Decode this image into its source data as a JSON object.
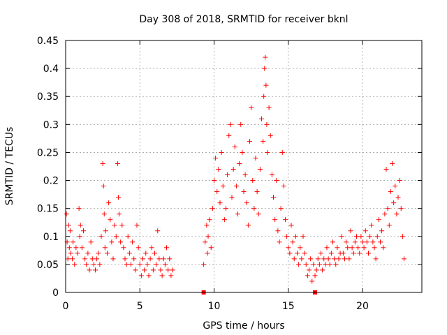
{
  "chart_data": {
    "type": "scatter",
    "title": "Day 308 of 2018, SRMTID for receiver bknl",
    "xlabel": "GPS time / hours",
    "ylabel": "SRMTID / TECUs",
    "xlim": [
      0,
      24
    ],
    "ylim": [
      0,
      0.45
    ],
    "xticks": [
      0,
      5,
      10,
      15,
      20
    ],
    "xtick_labels": [
      "0",
      "5",
      "10",
      "15",
      "20"
    ],
    "yticks": [
      0,
      0.05,
      0.1,
      0.15,
      0.2,
      0.25,
      0.3,
      0.35,
      0.4,
      0.45
    ],
    "ytick_labels": [
      "0",
      "0.05",
      "0.1",
      "0.15",
      "0.2",
      "0.25",
      "0.3",
      "0.35",
      "0.4",
      "0.45"
    ],
    "grid": true,
    "marker": "+",
    "color": "#ff0000",
    "series": [
      {
        "name": "SRMTID",
        "x": [
          0.05,
          0.1,
          0.15,
          0.2,
          0.25,
          0.3,
          0.35,
          0.45,
          0.5,
          0.6,
          0.7,
          0.8,
          0.9,
          0.95,
          1.0,
          1.1,
          1.2,
          1.3,
          1.4,
          1.5,
          1.6,
          1.7,
          1.8,
          1.9,
          2.0,
          2.1,
          2.2,
          2.3,
          2.4,
          2.5,
          2.55,
          2.6,
          2.65,
          2.7,
          2.8,
          2.9,
          3.0,
          3.1,
          3.2,
          3.3,
          3.4,
          3.5,
          3.55,
          3.6,
          3.7,
          3.8,
          3.9,
          4.0,
          4.1,
          4.2,
          4.3,
          4.4,
          4.5,
          4.6,
          4.7,
          4.8,
          4.9,
          5.0,
          5.1,
          5.2,
          5.3,
          5.4,
          5.5,
          5.6,
          5.7,
          5.8,
          5.9,
          6.0,
          6.1,
          6.2,
          6.3,
          6.4,
          6.5,
          6.6,
          6.7,
          6.8,
          6.9,
          7.0,
          7.1,
          7.2,
          9.3,
          9.4,
          9.5,
          9.55,
          9.6,
          9.7,
          9.8,
          9.9,
          10.0,
          10.1,
          10.2,
          10.3,
          10.4,
          10.5,
          10.6,
          10.7,
          10.8,
          10.9,
          11.0,
          11.1,
          11.2,
          11.3,
          11.4,
          11.5,
          11.6,
          11.7,
          11.8,
          11.9,
          12.0,
          12.1,
          12.2,
          12.3,
          12.4,
          12.5,
          12.6,
          12.7,
          12.8,
          12.9,
          13.0,
          13.1,
          13.2,
          13.3,
          13.35,
          13.4,
          13.45,
          13.5,
          13.55,
          13.6,
          13.7,
          13.8,
          13.9,
          14.0,
          14.1,
          14.2,
          14.3,
          14.4,
          14.5,
          14.6,
          14.7,
          14.8,
          14.9,
          15.0,
          15.1,
          15.2,
          15.3,
          15.4,
          15.5,
          15.6,
          15.7,
          15.8,
          15.9,
          16.0,
          16.1,
          16.2,
          16.3,
          16.4,
          16.5,
          16.6,
          16.7,
          16.8,
          16.9,
          17.0,
          17.1,
          17.2,
          17.3,
          17.4,
          17.5,
          17.6,
          17.7,
          17.8,
          17.9,
          18.0,
          18.1,
          18.2,
          18.3,
          18.4,
          18.5,
          18.6,
          18.7,
          18.8,
          18.9,
          19.0,
          19.1,
          19.2,
          19.3,
          19.4,
          19.5,
          19.6,
          19.7,
          19.8,
          19.9,
          20.0,
          20.1,
          20.2,
          20.3,
          20.4,
          20.5,
          20.6,
          20.7,
          20.8,
          20.9,
          21.0,
          21.1,
          21.2,
          21.3,
          21.4,
          21.5,
          21.6,
          21.7,
          21.8,
          21.9,
          22.0,
          22.1,
          22.2,
          22.3,
          22.4,
          22.5,
          22.6,
          22.7,
          22.8
        ],
        "y": [
          0.14,
          0.09,
          0.06,
          0.12,
          0.08,
          0.11,
          0.07,
          0.06,
          0.09,
          0.05,
          0.08,
          0.07,
          0.15,
          0.1,
          0.12,
          0.08,
          0.11,
          0.06,
          0.05,
          0.07,
          0.04,
          0.09,
          0.06,
          0.05,
          0.04,
          0.06,
          0.07,
          0.05,
          0.1,
          0.23,
          0.19,
          0.14,
          0.08,
          0.11,
          0.07,
          0.16,
          0.13,
          0.09,
          0.06,
          0.12,
          0.1,
          0.23,
          0.17,
          0.14,
          0.09,
          0.12,
          0.08,
          0.06,
          0.05,
          0.1,
          0.07,
          0.05,
          0.09,
          0.06,
          0.04,
          0.12,
          0.08,
          0.05,
          0.03,
          0.06,
          0.04,
          0.07,
          0.05,
          0.03,
          0.06,
          0.08,
          0.04,
          0.07,
          0.05,
          0.11,
          0.06,
          0.04,
          0.03,
          0.06,
          0.05,
          0.08,
          0.04,
          0.06,
          0.03,
          0.04,
          0.05,
          0.09,
          0.12,
          0.07,
          0.1,
          0.13,
          0.08,
          0.15,
          0.2,
          0.24,
          0.18,
          0.22,
          0.16,
          0.25,
          0.19,
          0.13,
          0.15,
          0.21,
          0.28,
          0.3,
          0.17,
          0.22,
          0.26,
          0.19,
          0.14,
          0.23,
          0.3,
          0.25,
          0.18,
          0.21,
          0.16,
          0.12,
          0.27,
          0.33,
          0.2,
          0.15,
          0.24,
          0.18,
          0.14,
          0.22,
          0.31,
          0.27,
          0.35,
          0.4,
          0.42,
          0.37,
          0.3,
          0.25,
          0.33,
          0.28,
          0.21,
          0.17,
          0.13,
          0.2,
          0.11,
          0.09,
          0.15,
          0.25,
          0.19,
          0.13,
          0.1,
          0.08,
          0.07,
          0.12,
          0.09,
          0.06,
          0.1,
          0.07,
          0.05,
          0.08,
          0.06,
          0.1,
          0.07,
          0.05,
          0.03,
          0.04,
          0.06,
          0.02,
          0.05,
          0.03,
          0.04,
          0.06,
          0.05,
          0.07,
          0.04,
          0.06,
          0.05,
          0.08,
          0.06,
          0.05,
          0.07,
          0.09,
          0.06,
          0.05,
          0.08,
          0.06,
          0.07,
          0.1,
          0.07,
          0.06,
          0.09,
          0.08,
          0.06,
          0.11,
          0.08,
          0.07,
          0.09,
          0.1,
          0.08,
          0.07,
          0.1,
          0.09,
          0.08,
          0.11,
          0.09,
          0.07,
          0.1,
          0.12,
          0.09,
          0.08,
          0.06,
          0.1,
          0.13,
          0.09,
          0.11,
          0.08,
          0.14,
          0.22,
          0.15,
          0.12,
          0.18,
          0.23,
          0.16,
          0.19,
          0.14,
          0.17,
          0.2,
          0.15,
          0.1,
          0.06
        ]
      }
    ],
    "zero_markers": {
      "x": [
        9.3,
        16.8
      ],
      "y": [
        0,
        0
      ]
    }
  }
}
